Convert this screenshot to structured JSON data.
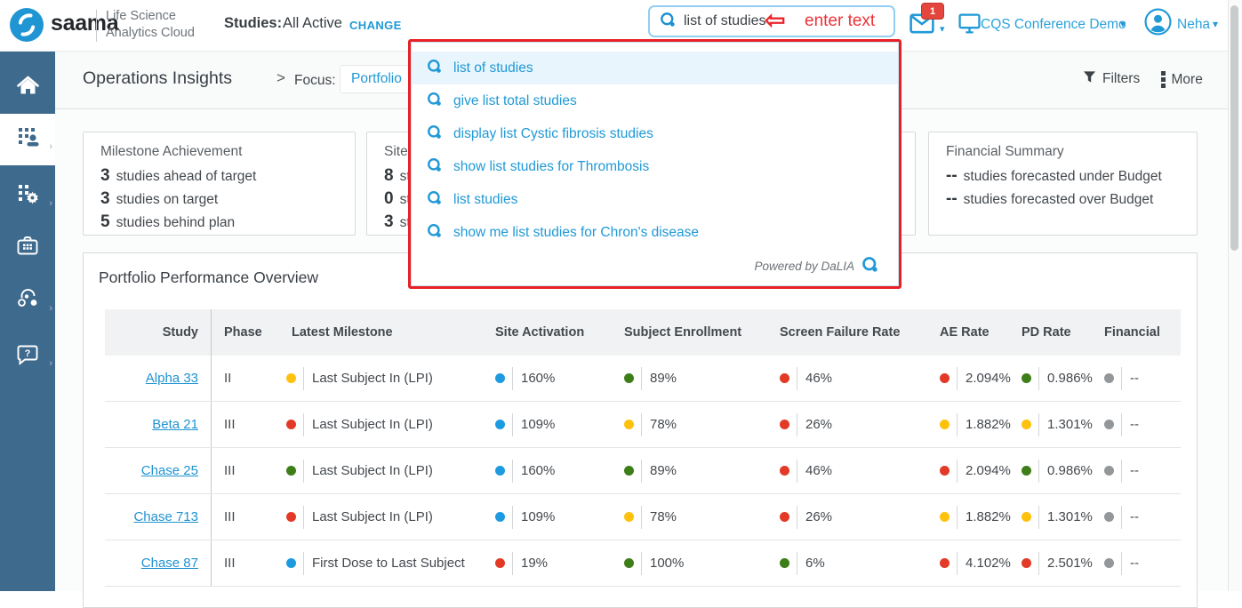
{
  "header": {
    "brand": "saama",
    "product_line1": "Life Science",
    "product_line2": "Analytics Cloud",
    "studies_label": "Studies:",
    "studies_value": "All Active",
    "change_label": "CHANGE",
    "search_value": "list of studies",
    "annotation_text": "enter text",
    "notification_count": "1",
    "workspace_label": "CQS Conference Demo",
    "user_name": "Neha"
  },
  "suggestions": {
    "items": [
      "list of studies",
      "give list total studies",
      "display list Cystic fibrosis studies",
      "show list studies for Thrombosis",
      "list studies",
      "show me list studies for Chron's disease"
    ],
    "footer_text": "Powered by DaLIA"
  },
  "page": {
    "title": "Operations Insights",
    "crumb_separator": ">",
    "focus_label": "Focus:",
    "focus_value": "Portfolio",
    "filters_label": "Filters",
    "more_label": "More"
  },
  "cards": [
    {
      "title": "Milestone Achievement",
      "lines": [
        {
          "value": "3",
          "text": "studies ahead of target"
        },
        {
          "value": "3",
          "text": "studies on target"
        },
        {
          "value": "5",
          "text": "studies behind plan"
        }
      ]
    },
    {
      "title": "Site A",
      "lines": [
        {
          "value": "8",
          "text": "stu"
        },
        {
          "value": "0",
          "text": "stu"
        },
        {
          "value": "3",
          "text": "stu"
        }
      ]
    },
    {
      "title": "",
      "lines": []
    },
    {
      "title": "Financial Summary",
      "lines": [
        {
          "value": "--",
          "text": "studies forecasted under Budget"
        },
        {
          "value": "--",
          "text": "studies forecasted over Budget"
        }
      ]
    }
  ],
  "panel": {
    "title": "Portfolio Performance Overview"
  },
  "table": {
    "columns": [
      "Study",
      "Phase",
      "Latest Milestone",
      "Site Activation",
      "Subject Enrollment",
      "Screen Failure Rate",
      "AE Rate",
      "PD Rate",
      "Financial"
    ],
    "rows": [
      {
        "study": "Alpha 33",
        "phase": "II",
        "milestone": {
          "status": "yellow",
          "label": "Last Subject In (LPI)"
        },
        "site_activation": {
          "status": "blue",
          "value": "160%"
        },
        "subject_enrollment": {
          "status": "green",
          "value": "89%"
        },
        "screen_failure_rate": {
          "status": "red",
          "value": "46%"
        },
        "ae_rate": {
          "status": "red",
          "value": "2.094%"
        },
        "pd_rate": {
          "status": "green",
          "value": "0.986%"
        },
        "financial": {
          "status": "gray",
          "value": "--"
        }
      },
      {
        "study": "Beta 21",
        "phase": "III",
        "milestone": {
          "status": "red",
          "label": "Last Subject In (LPI)"
        },
        "site_activation": {
          "status": "blue",
          "value": "109%"
        },
        "subject_enrollment": {
          "status": "yellow",
          "value": "78%"
        },
        "screen_failure_rate": {
          "status": "red",
          "value": "26%"
        },
        "ae_rate": {
          "status": "yellow",
          "value": "1.882%"
        },
        "pd_rate": {
          "status": "yellow",
          "value": "1.301%"
        },
        "financial": {
          "status": "gray",
          "value": "--"
        }
      },
      {
        "study": "Chase 25",
        "phase": "III",
        "milestone": {
          "status": "green",
          "label": "Last Subject In (LPI)"
        },
        "site_activation": {
          "status": "blue",
          "value": "160%"
        },
        "subject_enrollment": {
          "status": "green",
          "value": "89%"
        },
        "screen_failure_rate": {
          "status": "red",
          "value": "46%"
        },
        "ae_rate": {
          "status": "red",
          "value": "2.094%"
        },
        "pd_rate": {
          "status": "green",
          "value": "0.986%"
        },
        "financial": {
          "status": "gray",
          "value": "--"
        }
      },
      {
        "study": "Chase 713",
        "phase": "III",
        "milestone": {
          "status": "red",
          "label": "Last Subject In (LPI)"
        },
        "site_activation": {
          "status": "blue",
          "value": "109%"
        },
        "subject_enrollment": {
          "status": "yellow",
          "value": "78%"
        },
        "screen_failure_rate": {
          "status": "red",
          "value": "26%"
        },
        "ae_rate": {
          "status": "yellow",
          "value": "1.882%"
        },
        "pd_rate": {
          "status": "yellow",
          "value": "1.301%"
        },
        "financial": {
          "status": "gray",
          "value": "--"
        }
      },
      {
        "study": "Chase 87",
        "phase": "III",
        "milestone": {
          "status": "blue",
          "label": "First Dose to Last Subject"
        },
        "site_activation": {
          "status": "red",
          "value": "19%"
        },
        "subject_enrollment": {
          "status": "green",
          "value": "100%"
        },
        "screen_failure_rate": {
          "status": "green",
          "value": "6%"
        },
        "ae_rate": {
          "status": "red",
          "value": "4.102%"
        },
        "pd_rate": {
          "status": "red",
          "value": "2.501%"
        },
        "financial": {
          "status": "gray",
          "value": "--"
        }
      }
    ]
  },
  "status_colors": {
    "green": "#3e7e19",
    "red": "#e23a26",
    "yellow": "#fdc10e",
    "blue": "#1e9be0",
    "gray": "#939799"
  },
  "theme": {
    "accent_blue": "#2099d6",
    "annotation_red": "#e81f25",
    "sidebar_blue": "#3e6a8d",
    "badge_red": "#e4453c"
  },
  "icons": [
    "saama-logo-swoosh",
    "dalia-q-icon",
    "left-arrow-annotation",
    "mail-icon",
    "monitor-icon",
    "avatar-icon",
    "home-icon",
    "operations-grid-person-icon",
    "analytics-grid-gear-icon",
    "study-kit-icon",
    "collaboration-icon",
    "help-chat-icon",
    "filter-funnel-icon",
    "more-dots-icon",
    "chevron-down-icon"
  ]
}
